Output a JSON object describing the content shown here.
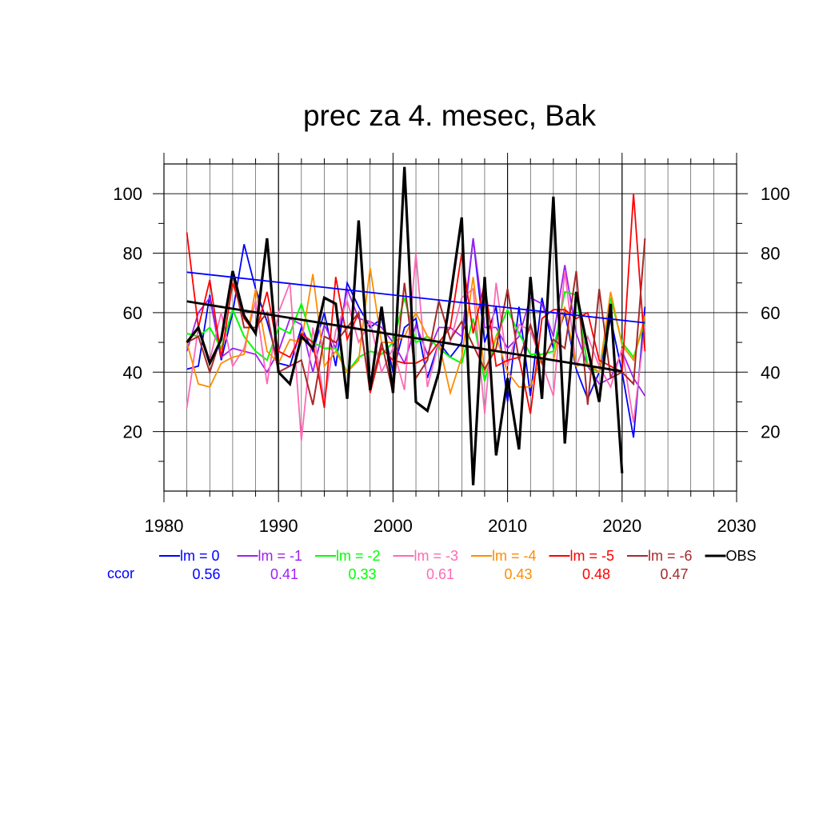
{
  "chart_data": {
    "type": "line",
    "title": "prec za 4. mesec, Bak",
    "xlabel": "",
    "ylabel": "",
    "xlim": [
      1980,
      2030
    ],
    "ylim": [
      0,
      110
    ],
    "xticks": [
      1980,
      1990,
      2000,
      2010,
      2020,
      2030
    ],
    "yticks": [
      20,
      40,
      60,
      80,
      100
    ],
    "grid": true,
    "x": [
      1982,
      1983,
      1984,
      1985,
      1986,
      1987,
      1988,
      1989,
      1990,
      1991,
      1992,
      1993,
      1994,
      1995,
      1996,
      1997,
      1998,
      1999,
      2000,
      2001,
      2002,
      2003,
      2004,
      2005,
      2006,
      2007,
      2008,
      2009,
      2010,
      2011,
      2012,
      2013,
      2014,
      2015,
      2016,
      2017,
      2018,
      2019,
      2020,
      2021,
      2022
    ],
    "series": [
      {
        "name": "lm = 0",
        "color": "#0000ff",
        "width": 1.8,
        "values": [
          41,
          42,
          66,
          44,
          60,
          83,
          68,
          57,
          43,
          42,
          55,
          47,
          60,
          42,
          70,
          62,
          55,
          58,
          40,
          55,
          58,
          38,
          50,
          45,
          50,
          85,
          50,
          62,
          30,
          62,
          32,
          65,
          48,
          60,
          41,
          31,
          40,
          58,
          40,
          18,
          62
        ]
      },
      {
        "name": "lm = -1",
        "color": "#a020f0",
        "width": 1.8,
        "values": [
          47,
          60,
          65,
          45,
          48,
          47,
          46,
          40,
          47,
          58,
          56,
          40,
          56,
          48,
          68,
          58,
          57,
          55,
          50,
          43,
          56,
          46,
          55,
          55,
          52,
          85,
          55,
          55,
          48,
          52,
          65,
          63,
          52,
          76,
          53,
          42,
          36,
          38,
          47,
          38,
          32
        ]
      },
      {
        "name": "lm = -2",
        "color": "#00ff00",
        "width": 2.0,
        "values": [
          53,
          52,
          55,
          48,
          61,
          52,
          47,
          44,
          55,
          53,
          63,
          50,
          48,
          48,
          40,
          45,
          47,
          46,
          50,
          65,
          50,
          52,
          48,
          45,
          43,
          58,
          37,
          52,
          61,
          53,
          46,
          46,
          47,
          67,
          66,
          42,
          40,
          65,
          50,
          45,
          57
        ]
      },
      {
        "name": "lm = -3",
        "color": "#ff69b4",
        "width": 1.8,
        "values": [
          28,
          55,
          44,
          60,
          42,
          48,
          64,
          36,
          60,
          70,
          17,
          55,
          30,
          54,
          64,
          50,
          57,
          40,
          48,
          34,
          80,
          35,
          50,
          50,
          65,
          68,
          26,
          70,
          42,
          56,
          54,
          43,
          32,
          74,
          42,
          52,
          42,
          35,
          48,
          23,
          56
        ]
      },
      {
        "name": "lm = -4",
        "color": "#ff8c00",
        "width": 1.8,
        "values": [
          50,
          36,
          35,
          43,
          45,
          46,
          68,
          47,
          43,
          51,
          50,
          73,
          42,
          47,
          40,
          44,
          75,
          50,
          50,
          52,
          60,
          52,
          50,
          33,
          45,
          72,
          40,
          52,
          40,
          35,
          35,
          45,
          44,
          62,
          42,
          43,
          40,
          67,
          49,
          44,
          59
        ]
      },
      {
        "name": "lm = -5",
        "color": "#ff0000",
        "width": 1.8,
        "values": [
          87,
          55,
          71,
          45,
          70,
          58,
          53,
          67,
          47,
          45,
          53,
          50,
          28,
          72,
          51,
          60,
          33,
          48,
          44,
          43,
          43,
          45,
          50,
          55,
          80,
          53,
          70,
          42,
          44,
          45,
          26,
          58,
          61,
          61,
          58,
          60,
          44,
          42,
          40,
          100,
          47
        ]
      },
      {
        "name": "lm = -6",
        "color": "#a52a2a",
        "width": 2.0,
        "values": [
          50,
          52,
          40,
          52,
          73,
          55,
          55,
          60,
          40,
          42,
          44,
          29,
          52,
          50,
          55,
          60,
          34,
          50,
          33,
          70,
          38,
          44,
          64,
          51,
          57,
          49,
          41,
          48,
          68,
          44,
          56,
          43,
          51,
          48,
          74,
          29,
          68,
          38,
          40,
          36,
          85
        ]
      },
      {
        "name": "OBS",
        "color": "#000000",
        "width": 3.2,
        "values": [
          50,
          55,
          43,
          51,
          74,
          59,
          53,
          85,
          40,
          36,
          52,
          48,
          65,
          63,
          31,
          91,
          34,
          62,
          33,
          109,
          30,
          27,
          40,
          65,
          92,
          2,
          72,
          12,
          38,
          14,
          72,
          31,
          99,
          16,
          67,
          48,
          30,
          63,
          6,
          null,
          null
        ]
      }
    ],
    "trends": [
      {
        "name": "lm = 0 trend",
        "color": "#0000ff",
        "width": 1.8,
        "x": [
          1982,
          2022
        ],
        "values": [
          73.6,
          56.6
        ]
      },
      {
        "name": "OBS trend",
        "color": "#000000",
        "width": 2.8,
        "x": [
          1982,
          2020
        ],
        "values": [
          63.8,
          40.3
        ]
      }
    ],
    "legend": {
      "position": "bottom",
      "ccor_label": "ccor",
      "ccor_label_color": "#0000ff",
      "entries": [
        {
          "label": "lm = 0",
          "ccor": "0.56",
          "color": "#0000ff"
        },
        {
          "label": "lm = -1",
          "ccor": "0.41",
          "color": "#a020f0"
        },
        {
          "label": "lm = -2",
          "ccor": "0.33",
          "color": "#00ff00"
        },
        {
          "label": "lm = -3",
          "ccor": "0.61",
          "color": "#ff69b4"
        },
        {
          "label": "lm = -4",
          "ccor": "0.43",
          "color": "#ff8c00"
        },
        {
          "label": "lm = -5",
          "ccor": "0.48",
          "color": "#ff0000"
        },
        {
          "label": "lm = -6",
          "ccor": "0.47",
          "color": "#a52a2a"
        },
        {
          "label": "OBS",
          "ccor": "",
          "color": "#000000"
        }
      ]
    }
  }
}
